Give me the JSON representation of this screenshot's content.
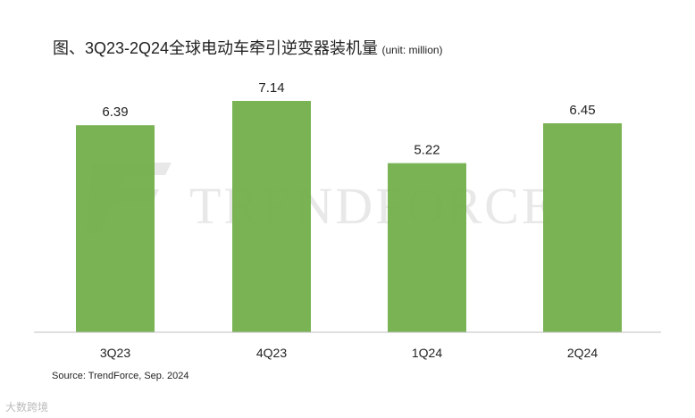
{
  "title": "图、3Q23-2Q24全球电动车牵引逆变器装机量",
  "unit_note": "(unit: million)",
  "source": "Source: TrendForce, Sep. 2024",
  "watermark_text": "TRENDFORCE",
  "corner_logo": "大数跨境",
  "colors": {
    "bar": "#70ad47",
    "axis": "#bfbfbf",
    "watermark": "#d9d9d9"
  },
  "chart_data": {
    "type": "bar",
    "categories": [
      "3Q23",
      "4Q23",
      "1Q24",
      "2Q24"
    ],
    "values": [
      6.39,
      7.14,
      5.22,
      6.45
    ],
    "data_labels": [
      "6.39",
      "7.14",
      "5.22",
      "6.45"
    ],
    "title": "图、3Q23-2Q24全球电动车牵引逆变器装机量",
    "xlabel": "",
    "ylabel": "",
    "ylim": [
      0,
      7.14
    ],
    "grid": false,
    "legend": "none"
  }
}
